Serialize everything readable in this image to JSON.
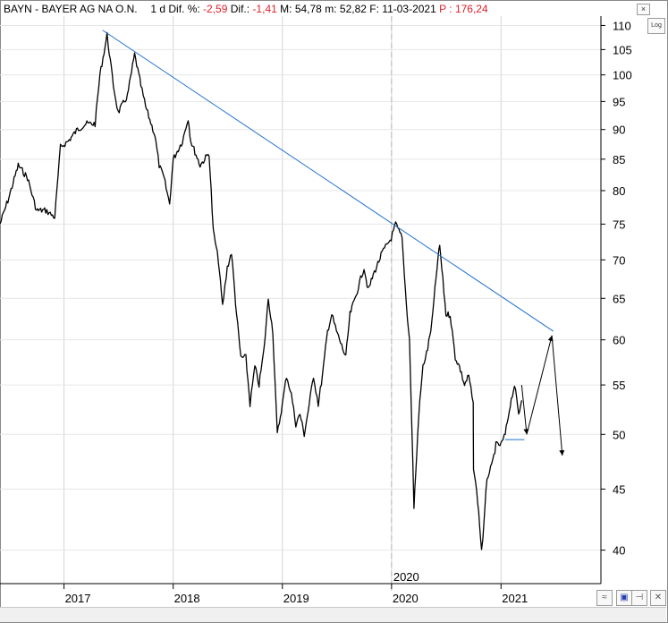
{
  "header": {
    "symbol": "BAYN",
    "name": "BAYER AG NA O.N.",
    "period": "1 d",
    "dif_pct_label": "Dif. %:",
    "dif_pct_value": "-2,59",
    "dif_label": "Dif.:",
    "dif_value": "-1,41",
    "max_label": "M:",
    "max_value": "54,78",
    "min_label": "m:",
    "min_value": "52,82",
    "date_label": "F:",
    "date_value": "11-03-2021",
    "p_label": "P :",
    "p_value": "176,24"
  },
  "buttons": {
    "close": "×",
    "log": "Log",
    "scale": "≈",
    "save": "▣",
    "pin": "⊣",
    "close_bottom": "✕"
  },
  "colors": {
    "price_line": "#000000",
    "trendline": "#1f6fd1",
    "negative": "#e0202a",
    "grid": "#c8c8c8",
    "support": "#1f6fd1"
  },
  "chart_data": {
    "type": "line",
    "y_scale": "log",
    "ylim": [
      37.5,
      112
    ],
    "y_ticks": [
      40,
      45,
      50,
      55,
      60,
      65,
      70,
      75,
      80,
      85,
      90,
      95,
      100,
      105,
      110
    ],
    "x_ticks": [
      "2017",
      "2018",
      "2019",
      "2020",
      "2021"
    ],
    "x_divider_label": "2020",
    "x_range": [
      "2016-06",
      "2021-12"
    ],
    "grid": true,
    "series": [
      {
        "values": [
          [
            "2016-06-01",
            75
          ],
          [
            "2016-07-01",
            79
          ],
          [
            "2016-08-01",
            84
          ],
          [
            "2016-09-01",
            82
          ],
          [
            "2016-10-01",
            77
          ],
          [
            "2016-11-01",
            77
          ],
          [
            "2016-12-01",
            76
          ],
          [
            "2016-12-20",
            87
          ],
          [
            "2017-01-15",
            88
          ],
          [
            "2017-02-15",
            90
          ],
          [
            "2017-03-15",
            91
          ],
          [
            "2017-04-15",
            91
          ],
          [
            "2017-05-01",
            100
          ],
          [
            "2017-05-25",
            108
          ],
          [
            "2017-06-15",
            98
          ],
          [
            "2017-07-01",
            93
          ],
          [
            "2017-08-01",
            96
          ],
          [
            "2017-08-25",
            104
          ],
          [
            "2017-09-15",
            98
          ],
          [
            "2017-10-01",
            94
          ],
          [
            "2017-11-01",
            89
          ],
          [
            "2017-11-15",
            84
          ],
          [
            "2017-12-01",
            82
          ],
          [
            "2017-12-20",
            78
          ],
          [
            "2018-01-01",
            85
          ],
          [
            "2018-02-01",
            88
          ],
          [
            "2018-02-20",
            92
          ],
          [
            "2018-03-01",
            88
          ],
          [
            "2018-04-01",
            84
          ],
          [
            "2018-05-01",
            86
          ],
          [
            "2018-05-15",
            74
          ],
          [
            "2018-06-01",
            70
          ],
          [
            "2018-06-15",
            64
          ],
          [
            "2018-07-01",
            69
          ],
          [
            "2018-07-15",
            71
          ],
          [
            "2018-08-01",
            63
          ],
          [
            "2018-08-15",
            58
          ],
          [
            "2018-09-01",
            58
          ],
          [
            "2018-09-15",
            53
          ],
          [
            "2018-10-01",
            57
          ],
          [
            "2018-10-15",
            55
          ],
          [
            "2018-11-01",
            59
          ],
          [
            "2018-11-15",
            65
          ],
          [
            "2018-11-30",
            61
          ],
          [
            "2018-12-15",
            50
          ],
          [
            "2019-01-01",
            53
          ],
          [
            "2019-01-15",
            56
          ],
          [
            "2019-01-31",
            54
          ],
          [
            "2019-02-15",
            51
          ],
          [
            "2019-03-01",
            52
          ],
          [
            "2019-03-15",
            50
          ],
          [
            "2019-04-01",
            53
          ],
          [
            "2019-04-15",
            56
          ],
          [
            "2019-05-01",
            53
          ],
          [
            "2019-05-15",
            56
          ],
          [
            "2019-06-01",
            61
          ],
          [
            "2019-06-15",
            63
          ],
          [
            "2019-07-01",
            61
          ],
          [
            "2019-08-01",
            58
          ],
          [
            "2019-08-15",
            63
          ],
          [
            "2019-09-01",
            65
          ],
          [
            "2019-10-01",
            69
          ],
          [
            "2019-10-15",
            66
          ],
          [
            "2019-11-01",
            68
          ],
          [
            "2019-12-01",
            71
          ],
          [
            "2019-12-31",
            73
          ],
          [
            "2020-01-15",
            75
          ],
          [
            "2020-02-05",
            73
          ],
          [
            "2020-02-20",
            64
          ],
          [
            "2020-03-01",
            60
          ],
          [
            "2020-03-16",
            43.5
          ],
          [
            "2020-03-25",
            48
          ],
          [
            "2020-04-01",
            52
          ],
          [
            "2020-04-15",
            57
          ],
          [
            "2020-05-01",
            59
          ],
          [
            "2020-05-15",
            62
          ],
          [
            "2020-06-01",
            69
          ],
          [
            "2020-06-10",
            72
          ],
          [
            "2020-07-01",
            63
          ],
          [
            "2020-07-15",
            63
          ],
          [
            "2020-08-01",
            58
          ],
          [
            "2020-08-15",
            57
          ],
          [
            "2020-09-01",
            55
          ],
          [
            "2020-09-15",
            56
          ],
          [
            "2020-09-30",
            53
          ],
          [
            "2020-10-01",
            47
          ],
          [
            "2020-10-15",
            44
          ],
          [
            "2020-10-28",
            40
          ],
          [
            "2020-11-05",
            42
          ],
          [
            "2020-11-15",
            46
          ],
          [
            "2020-12-01",
            47
          ],
          [
            "2020-12-15",
            49
          ],
          [
            "2021-01-01",
            49
          ],
          [
            "2021-01-15",
            50
          ],
          [
            "2021-02-01",
            53
          ],
          [
            "2021-02-15",
            55
          ],
          [
            "2021-03-01",
            52
          ],
          [
            "2021-03-11",
            53.4
          ]
        ]
      }
    ],
    "trendline": [
      [
        "2017-05-10",
        109
      ],
      [
        "2021-06-25",
        61
      ]
    ],
    "support_line": [
      [
        "2021-01-15",
        49.5
      ],
      [
        "2021-03-20",
        49.5
      ]
    ],
    "projection": [
      [
        "2021-03-11",
        55
      ],
      [
        "2021-03-28",
        50
      ],
      [
        "2021-06-20",
        60.5
      ],
      [
        "2021-07-25",
        48
      ]
    ]
  }
}
